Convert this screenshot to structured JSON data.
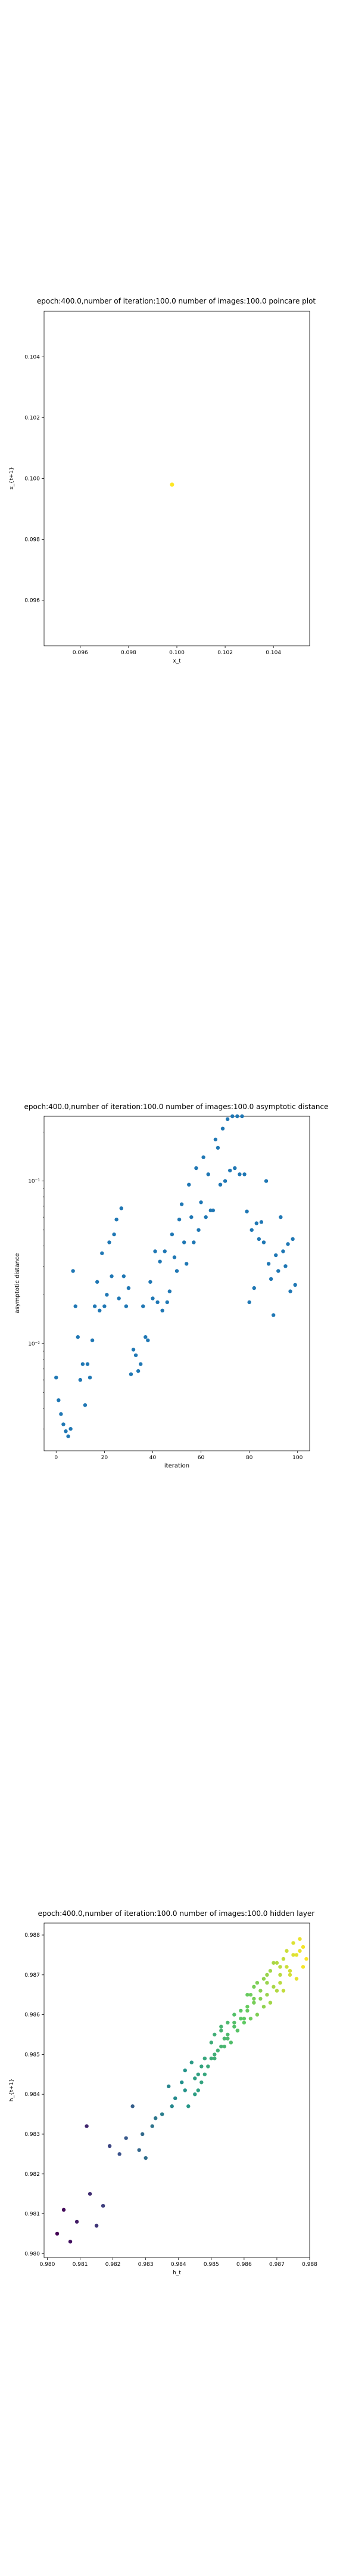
{
  "chart_data": [
    {
      "type": "scatter",
      "title": "epoch:400.0,number of iteration:100.0 number of images:100.0 poincare plot",
      "xlabel": "x_t",
      "ylabel": "x_{t+1}",
      "xlim": [
        0.0945,
        0.1055
      ],
      "ylim": [
        0.0945,
        0.1055
      ],
      "xticks": [
        0.096,
        0.098,
        0.1,
        0.102,
        0.104
      ],
      "yticks": [
        0.096,
        0.098,
        0.1,
        0.102,
        0.104
      ],
      "tick_labels_x": [
        "0.096",
        "0.098",
        "0.100",
        "0.102",
        "0.104"
      ],
      "tick_labels_y": [
        "0.096",
        "0.098",
        "0.100",
        "0.102",
        "0.104"
      ],
      "points": [
        {
          "x": 0.0998,
          "y": 0.0998
        }
      ],
      "colors": {
        "point": "#fde725"
      },
      "grid": false
    },
    {
      "type": "scatter",
      "title": "epoch:400.0,number of iteration:100.0  number of images:100.0 asymptotic distance",
      "xlabel": "iteration",
      "ylabel": "asymptotic distance",
      "xlim": [
        -5,
        105
      ],
      "ylim": [
        0.0022,
        0.25
      ],
      "yscale": "log",
      "xticks": [
        0,
        20,
        40,
        60,
        80,
        100
      ],
      "tick_labels_x": [
        "0",
        "20",
        "40",
        "60",
        "80",
        "100"
      ],
      "yticks": [
        0.01,
        0.1
      ],
      "tick_labels_y": [
        "10⁻²",
        "10⁻¹"
      ],
      "series_color": "#1f77b4",
      "x": [
        0,
        1,
        2,
        3,
        4,
        5,
        6,
        7,
        8,
        9,
        10,
        11,
        12,
        13,
        14,
        15,
        16,
        17,
        18,
        19,
        20,
        21,
        22,
        23,
        24,
        25,
        26,
        27,
        28,
        29,
        30,
        31,
        32,
        33,
        34,
        35,
        36,
        37,
        38,
        39,
        40,
        41,
        42,
        43,
        44,
        45,
        46,
        47,
        48,
        49,
        50,
        51,
        52,
        53,
        54,
        55,
        56,
        57,
        58,
        59,
        60,
        61,
        62,
        63,
        64,
        65,
        66,
        67,
        68,
        69,
        70,
        71,
        72,
        73,
        74,
        75,
        76,
        77,
        78,
        79,
        80,
        81,
        82,
        83,
        84,
        85,
        86,
        87,
        88,
        89,
        90,
        91,
        92,
        93,
        94,
        95,
        96,
        97,
        98,
        99
      ],
      "y": [
        0.0062,
        0.0045,
        0.0037,
        0.0032,
        0.0029,
        0.0027,
        0.003,
        0.028,
        0.017,
        0.011,
        0.006,
        0.0075,
        0.0042,
        0.0075,
        0.0062,
        0.0105,
        0.017,
        0.024,
        0.016,
        0.036,
        0.017,
        0.02,
        0.042,
        0.026,
        0.047,
        0.058,
        0.019,
        0.068,
        0.026,
        0.017,
        0.022,
        0.0065,
        0.0092,
        0.0085,
        0.0068,
        0.0075,
        0.017,
        0.011,
        0.0105,
        0.024,
        0.019,
        0.037,
        0.018,
        0.032,
        0.016,
        0.037,
        0.018,
        0.021,
        0.047,
        0.034,
        0.028,
        0.058,
        0.072,
        0.042,
        0.031,
        0.095,
        0.06,
        0.042,
        0.12,
        0.05,
        0.074,
        0.14,
        0.06,
        0.11,
        0.066,
        0.066,
        0.18,
        0.16,
        0.095,
        0.21,
        0.1,
        0.24,
        0.116,
        0.3,
        0.12,
        0.31,
        0.11,
        0.31,
        0.11,
        0.065,
        0.018,
        0.05,
        0.022,
        0.055,
        0.044,
        0.056,
        0.042,
        0.1,
        0.031,
        0.025,
        0.015,
        0.035,
        0.028,
        0.06,
        0.037,
        0.03,
        0.041,
        0.021,
        0.044,
        0.023
      ]
    },
    {
      "type": "scatter",
      "title": "epoch:400.0,number of iteration:100.0  number of images:100.0 hidden layer",
      "xlabel": "h_t",
      "ylabel": "h_{t+1}",
      "xlim": [
        0.9799,
        0.988
      ],
      "ylim": [
        0.9799,
        0.9883
      ],
      "xticks": [
        0.98,
        0.981,
        0.982,
        0.983,
        0.984,
        0.985,
        0.986,
        0.987,
        0.988
      ],
      "tick_labels_x": [
        "0.980",
        "0.981",
        "0.982",
        "0.983",
        "0.984",
        "0.985",
        "0.986",
        "0.987",
        "0.988"
      ],
      "yticks": [
        0.98,
        0.981,
        0.982,
        0.983,
        0.984,
        0.985,
        0.986,
        0.987,
        0.988
      ],
      "tick_labels_y": [
        "0.980",
        "0.981",
        "0.982",
        "0.983",
        "0.984",
        "0.985",
        "0.986",
        "0.987",
        "0.988"
      ],
      "colormap": [
        "#440154",
        "#3b528b",
        "#21918c",
        "#5ec962",
        "#fde725"
      ],
      "x": [
        0.9803,
        0.9805,
        0.9807,
        0.9809,
        0.9812,
        0.9813,
        0.9815,
        0.9817,
        0.9819,
        0.9822,
        0.9824,
        0.9826,
        0.9828,
        0.983,
        0.9832,
        0.9835,
        0.9837,
        0.9839,
        0.9841,
        0.9842,
        0.9844,
        0.9845,
        0.9846,
        0.9847,
        0.9848,
        0.985,
        0.9851,
        0.9853,
        0.9854,
        0.9855,
        0.9857,
        0.9858,
        0.986,
        0.9861,
        0.9862,
        0.9863,
        0.9864,
        0.9866,
        0.9867,
        0.9868,
        0.987,
        0.9871,
        0.9872,
        0.9873,
        0.9874,
        0.9875,
        0.9876,
        0.9877,
        0.9878,
        0.9879,
        0.9843,
        0.9845,
        0.9847,
        0.9849,
        0.9851,
        0.9853,
        0.9855,
        0.9857,
        0.9859,
        0.9861,
        0.9863,
        0.9865,
        0.9867,
        0.9869,
        0.9871,
        0.9873,
        0.9875,
        0.9877,
        0.9848,
        0.9852,
        0.9856,
        0.986,
        0.9864,
        0.9868,
        0.9872,
        0.9876,
        0.9829,
        0.9833,
        0.9838,
        0.9842,
        0.9846,
        0.985,
        0.9854,
        0.9858,
        0.9862,
        0.9866,
        0.987,
        0.9874,
        0.9878,
        0.9851,
        0.9853,
        0.9855,
        0.9857,
        0.9859,
        0.9861,
        0.9863,
        0.9865,
        0.9867,
        0.9869,
        0.9871
      ],
      "y": [
        0.9805,
        0.9811,
        0.9803,
        0.9808,
        0.9832,
        0.9815,
        0.9807,
        0.9812,
        0.9827,
        0.9825,
        0.9829,
        0.9837,
        0.9826,
        0.9824,
        0.9832,
        0.9835,
        0.9842,
        0.9839,
        0.9843,
        0.9846,
        0.9848,
        0.9844,
        0.9841,
        0.9847,
        0.9849,
        0.9853,
        0.9849,
        0.9856,
        0.9854,
        0.9858,
        0.986,
        0.9856,
        0.9859,
        0.9862,
        0.9865,
        0.9863,
        0.9868,
        0.9869,
        0.9865,
        0.9871,
        0.9873,
        0.9868,
        0.9874,
        0.9876,
        0.9871,
        0.9878,
        0.9875,
        0.9879,
        0.9872,
        0.9874,
        0.9837,
        0.984,
        0.9843,
        0.9847,
        0.985,
        0.9852,
        0.9855,
        0.9857,
        0.9859,
        0.9861,
        0.9864,
        0.9866,
        0.9868,
        0.9867,
        0.987,
        0.9872,
        0.9875,
        0.9876,
        0.9845,
        0.9851,
        0.9853,
        0.9858,
        0.986,
        0.9863,
        0.9866,
        0.9869,
        0.983,
        0.9834,
        0.9837,
        0.9841,
        0.9845,
        0.9849,
        0.9852,
        0.9856,
        0.9859,
        0.9862,
        0.9866,
        0.987,
        0.9877,
        0.9855,
        0.9857,
        0.9854,
        0.9858,
        0.9861,
        0.9865,
        0.9867,
        0.9864,
        0.987,
        0.9873,
        0.9872
      ]
    }
  ]
}
